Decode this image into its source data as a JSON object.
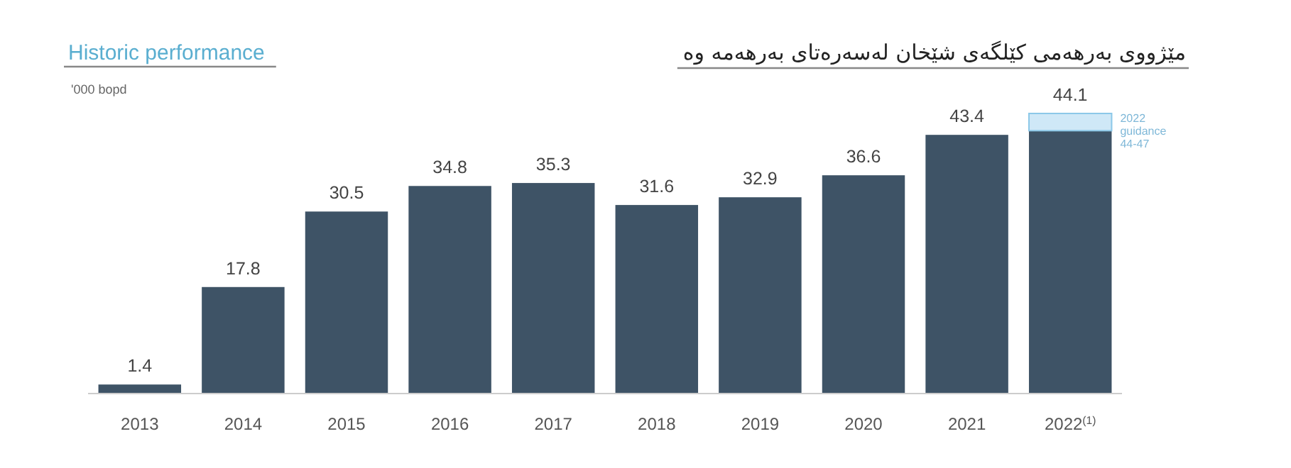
{
  "chart_data": {
    "type": "bar",
    "title": "Historic performance",
    "subtitle": "مێژووی بەرهەمی کێلگەی شێخان لەسەرەتای بەرهەمە وە",
    "ylabel": "'000 bopd",
    "categories": [
      "2013",
      "2014",
      "2015",
      "2016",
      "2017",
      "2018",
      "2019",
      "2020",
      "2021",
      "2022$^{(1)}$"
    ],
    "stacked": true,
    "series": [
      {
        "color": "#3e5366",
        "values": [
          1.4,
          17.8,
          30.5,
          34.8,
          35.3,
          31.6,
          32.9,
          36.6,
          43.4,
          44.1
        ],
        "value_labels": [
          "1.4",
          "17.8",
          "30.5",
          "34.8",
          "35.3",
          "31.6",
          "32.9",
          "36.6",
          "43.4",
          "44.1"
        ]
      },
      {
        "color": "#cfe8f7",
        "values": [
          null,
          null,
          null,
          null,
          null,
          null,
          null,
          null,
          null,
          2.9
        ]
      }
    ],
    "annotations": [
      "2022 guidance 44-47"
    ]
  }
}
